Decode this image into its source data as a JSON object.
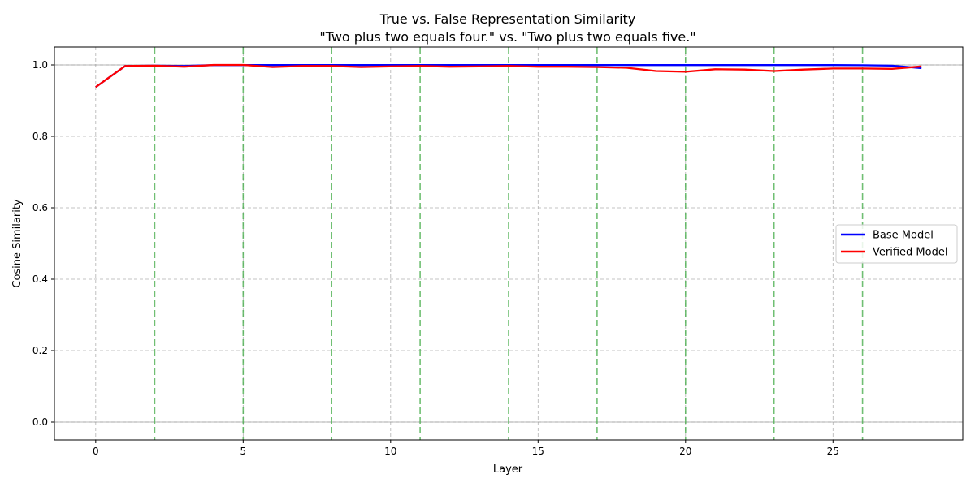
{
  "chart_data": {
    "type": "line",
    "title": "True vs. False Representation Similarity",
    "subtitle": "\"Two plus two equals four.\" vs. \"Two plus two equals five.\"",
    "xlabel": "Layer",
    "ylabel": "Cosine Similarity",
    "xlim": [
      -1.4,
      29.4
    ],
    "ylim": [
      -0.05,
      1.05
    ],
    "xticks": [
      0,
      5,
      10,
      15,
      20,
      25
    ],
    "yticks": [
      0.0,
      0.2,
      0.4,
      0.6,
      0.8,
      1.0
    ],
    "xtick_labels": [
      "0",
      "5",
      "10",
      "15",
      "20",
      "25"
    ],
    "ytick_labels": [
      "0.0",
      "0.2",
      "0.4",
      "0.6",
      "0.8",
      "1.0"
    ],
    "grid": true,
    "legend_position": "center-right",
    "reference_lines_y": [
      0.0,
      1.0
    ],
    "highlight_layers": [
      2,
      5,
      8,
      11,
      14,
      17,
      20,
      23,
      26
    ],
    "x": [
      0,
      1,
      2,
      3,
      4,
      5,
      6,
      7,
      8,
      9,
      10,
      11,
      12,
      13,
      14,
      15,
      16,
      17,
      18,
      19,
      20,
      21,
      22,
      23,
      24,
      25,
      26,
      27,
      28
    ],
    "series": [
      {
        "name": "Base Model",
        "color": "#0000ff",
        "values": [
          0.938,
          0.997,
          0.998,
          0.997,
          0.9995,
          0.9995,
          0.9995,
          0.9995,
          0.9995,
          0.9995,
          0.9995,
          0.9995,
          0.9995,
          0.9995,
          0.9995,
          0.9995,
          0.9995,
          0.9995,
          0.9995,
          0.9995,
          0.9995,
          0.9995,
          0.9995,
          0.9995,
          0.9995,
          0.9995,
          0.999,
          0.998,
          0.991
        ]
      },
      {
        "name": "Verified Model",
        "color": "#ff0000",
        "values": [
          0.938,
          0.997,
          0.998,
          0.995,
          1.0,
          1.0,
          0.994,
          0.997,
          0.997,
          0.994,
          0.996,
          0.997,
          0.995,
          0.996,
          0.997,
          0.995,
          0.995,
          0.994,
          0.992,
          0.983,
          0.981,
          0.988,
          0.987,
          0.983,
          0.987,
          0.99,
          0.99,
          0.989,
          0.996
        ]
      }
    ]
  }
}
